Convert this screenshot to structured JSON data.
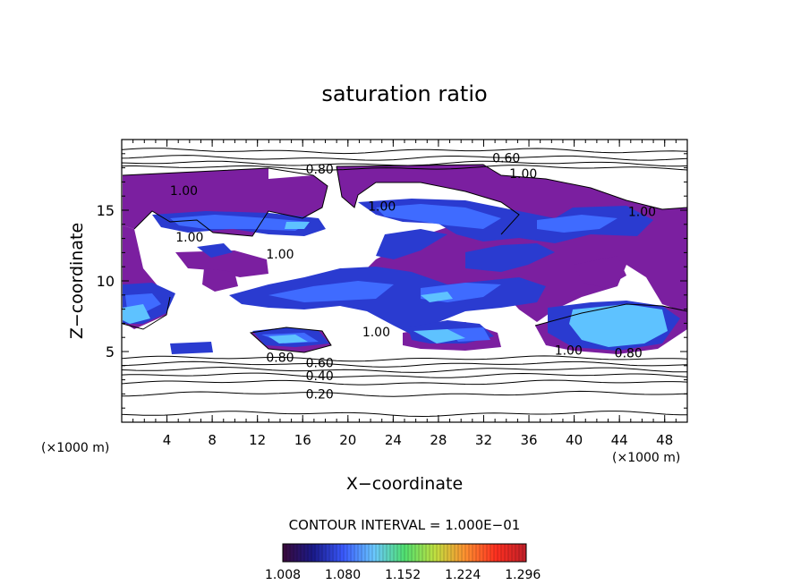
{
  "chart_data": {
    "type": "heatmap",
    "title": "saturation ratio",
    "xlabel": "X−coordinate",
    "ylabel": "Z−coordinate",
    "x_unit_left": "(×1000 m)",
    "x_unit_right": "(×1000 m)",
    "xlim": [
      0,
      50
    ],
    "ylim": [
      0,
      20
    ],
    "x_ticks": [
      4,
      8,
      12,
      16,
      20,
      24,
      28,
      32,
      36,
      40,
      44,
      48
    ],
    "y_ticks": [
      5,
      10,
      15
    ],
    "contour_interval_text": "CONTOUR INTERVAL = 1.000E−01",
    "colorbar": {
      "min": 1.008,
      "max": 1.3,
      "tick_labels": [
        "1.008",
        "1.080",
        "1.152",
        "1.224",
        "1.296"
      ],
      "colors": [
        "#3a0a3a",
        "#1a1a8a",
        "#3a5aff",
        "#6ac8ff",
        "#50e070",
        "#c0e040",
        "#ff9030",
        "#ff3020",
        "#c0202a"
      ]
    },
    "contour_labels": [
      {
        "text": "0.60",
        "x": 34.0,
        "z": 18.7
      },
      {
        "text": "0.80",
        "x": 17.5,
        "z": 17.9
      },
      {
        "text": "1.00",
        "x": 35.5,
        "z": 17.6
      },
      {
        "text": "1.00",
        "x": 5.5,
        "z": 16.4
      },
      {
        "text": "1.00",
        "x": 23.0,
        "z": 15.3
      },
      {
        "text": "1.00",
        "x": 46.0,
        "z": 14.9
      },
      {
        "text": "1.00",
        "x": 6.0,
        "z": 13.1
      },
      {
        "text": "1.00",
        "x": 14.0,
        "z": 11.9
      },
      {
        "text": "1.00",
        "x": 22.5,
        "z": 6.4
      },
      {
        "text": "1.00",
        "x": 39.5,
        "z": 5.1
      },
      {
        "text": "0.80",
        "x": 14.0,
        "z": 4.6
      },
      {
        "text": "0.80",
        "x": 44.8,
        "z": 4.9
      },
      {
        "text": "0.60",
        "x": 17.5,
        "z": 4.2
      },
      {
        "text": "0.40",
        "x": 17.5,
        "z": 3.3
      },
      {
        "text": "0.20",
        "x": 17.5,
        "z": 2.0
      }
    ],
    "contour_lines_z": [
      0.6,
      2.0,
      2.8,
      3.3,
      3.7,
      4.1,
      4.5,
      18.0,
      18.3,
      18.7,
      19.2
    ]
  }
}
